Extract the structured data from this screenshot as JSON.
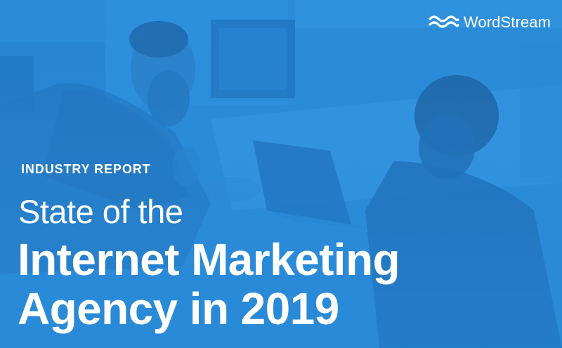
{
  "brand": {
    "name": "WordStream",
    "logo_icon": "wordstream-waves-logo-icon"
  },
  "cover": {
    "kicker": "INDUSTRY REPORT",
    "title_line1": "State of the",
    "title_line2": "Internet Marketing",
    "title_line3": "Agency in 2019"
  },
  "colors": {
    "background_blue": "#2a8bd8",
    "text_white": "#ffffff"
  }
}
